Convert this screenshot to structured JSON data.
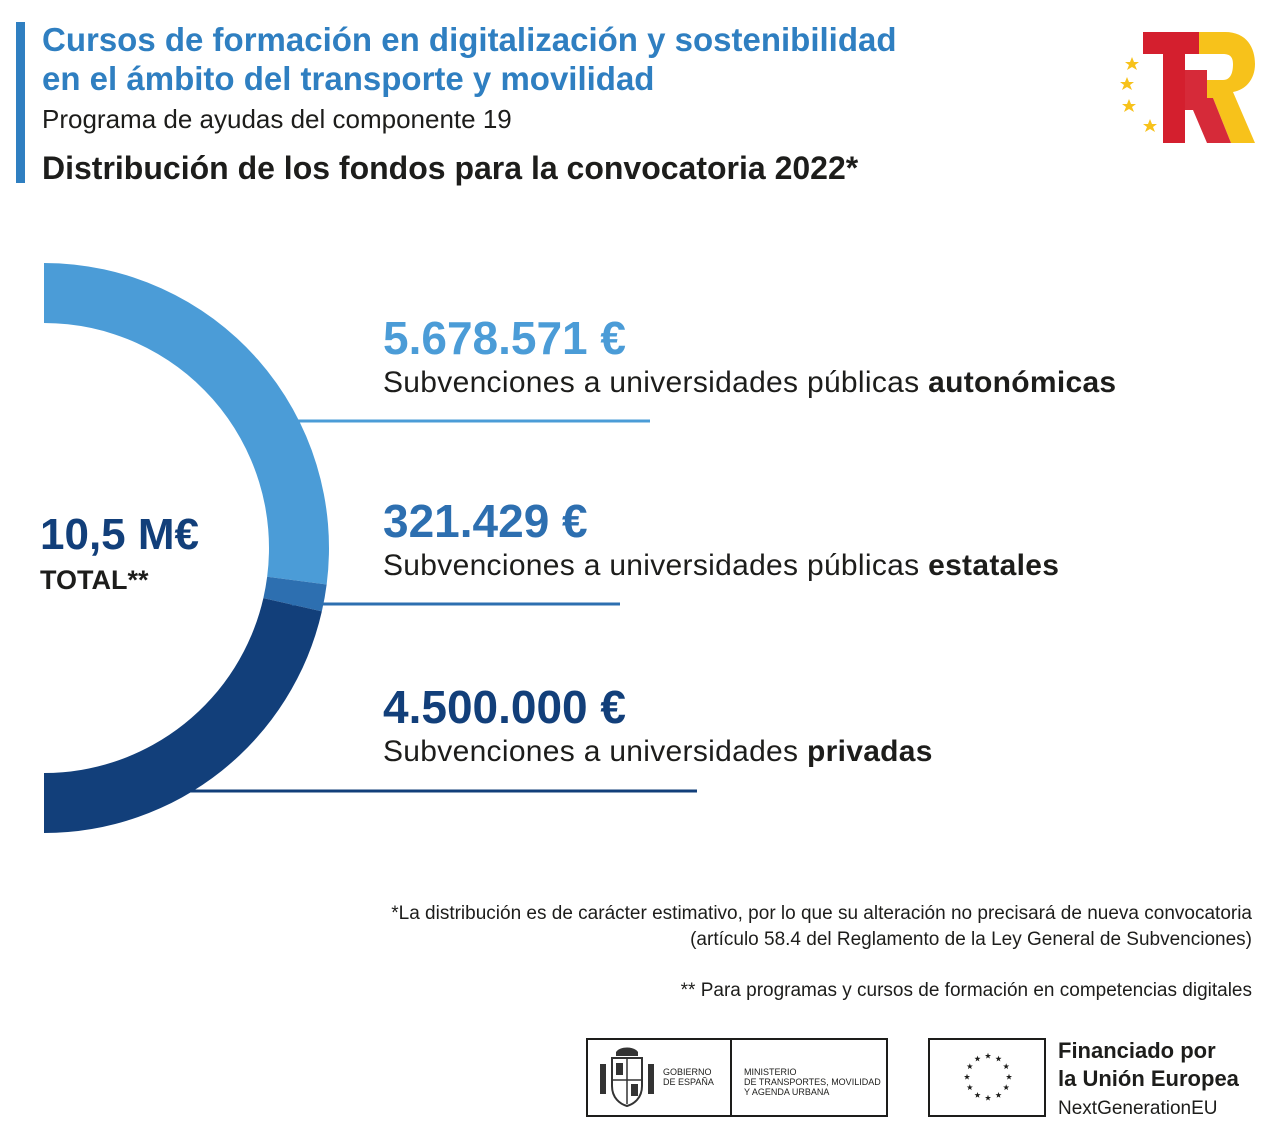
{
  "header": {
    "title_line1": "Cursos de formación en digitalización y sostenibilidad",
    "title_line2": "en el ámbito del transporte y movilidad",
    "subtitle": "Programa de ayudas del componente 19",
    "heading": "Distribución de los fondos para la convocatoria 2022*"
  },
  "center": {
    "value": "10,5 M€",
    "label": "TOTAL**"
  },
  "chart_data": {
    "type": "pie",
    "title": "Distribución de los fondos para la convocatoria 2022*",
    "total_label": "10,5 M€",
    "categories": [
      "Subvenciones a universidades públicas autonómicas",
      "Subvenciones a universidades públicas estatales",
      "Subvenciones a universidades privadas"
    ],
    "values": [
      5678571,
      321429,
      4500000
    ],
    "unit": "€",
    "colors": [
      "#4b9cd7",
      "#2d6fb0",
      "#123f7a"
    ]
  },
  "items": [
    {
      "amount": "5.678.571 €",
      "desc_prefix": "Subvenciones a universidades públicas ",
      "desc_bold": "autonómicas",
      "color": "#4b9cd7"
    },
    {
      "amount": "321.429 €",
      "desc_prefix": "Subvenciones a universidades públicas ",
      "desc_bold": "estatales",
      "color": "#2d6fb0"
    },
    {
      "amount": "4.500.000 €",
      "desc_prefix": "Subvenciones a universidades ",
      "desc_bold": "privadas",
      "color": "#123f7a"
    }
  ],
  "notes": {
    "note1_line1": "*La distribución es de carácter estimativo, por lo que su alteración no precisará de nueva convocatoria",
    "note1_line2": "(artículo 58.4 del Reglamento de la Ley General de Subvenciones)",
    "note2": "** Para programas y cursos de formación en competencias digitales"
  },
  "footer": {
    "gov_line1": "GOBIERNO",
    "gov_line2": "DE ESPAÑA",
    "ministry_line1": "MINISTERIO",
    "ministry_line2": "DE TRANSPORTES, MOVILIDAD",
    "ministry_line3": "Y AGENDA URBANA",
    "eu_line1": "Financiado por",
    "eu_line2": "la Unión Europea",
    "eu_line3": "NextGenerationEU"
  },
  "icons": [
    "tr-logo-icon",
    "coat-of-arms-icon",
    "eu-flag-icon"
  ]
}
